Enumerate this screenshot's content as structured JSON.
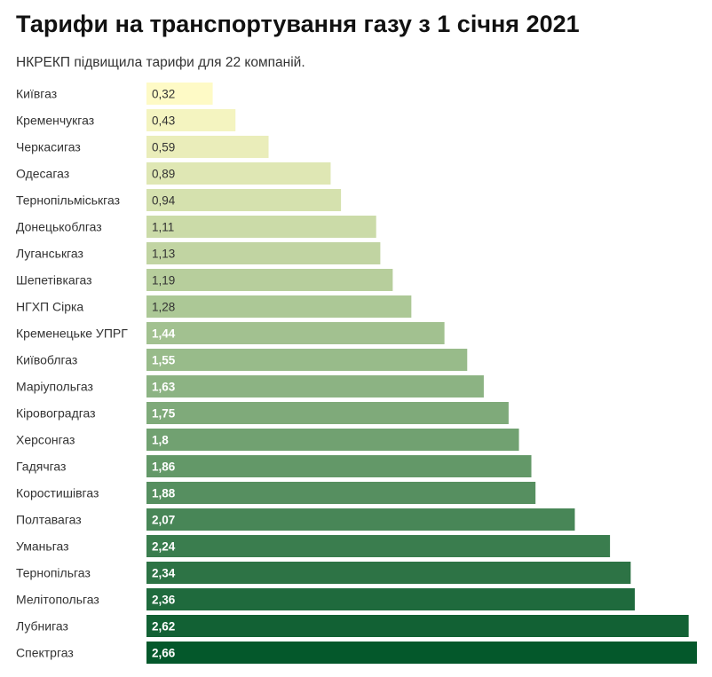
{
  "header": {
    "title": "Тарифи на транспортування газу з 1 січня 2021",
    "subtitle": "НКРЕКП підвищила тарифи для 22 компаній."
  },
  "colors": {
    "low": "#fefac6",
    "mid": "#93b887",
    "high": "#04582b"
  },
  "chart_data": {
    "type": "bar",
    "orientation": "horizontal",
    "title": "Тарифи на транспортування газу з 1 січня 2021",
    "subtitle": "НКРЕКП підвищила тарифи для 22 компаній.",
    "categories": [
      "Київгаз",
      "Кременчукгаз",
      "Черкасигаз",
      "Одесагаз",
      "Тернопільміськгаз",
      "Донецькоблгаз",
      "Луганськгаз",
      "Шепетівкагаз",
      "НГХП Сірка",
      "Кременецьке УПРГ",
      "Київоблгаз",
      "Маріупольгаз",
      "Кіровоградгаз",
      "Херсонгаз",
      "Гадячгаз",
      "Коростишівгаз",
      "Полтавагаз",
      "Уманьгаз",
      "Тернопільгаз",
      "Мелітопольгаз",
      "Лубнигаз",
      "Спектргаз"
    ],
    "values": [
      0.32,
      0.43,
      0.59,
      0.89,
      0.94,
      1.11,
      1.13,
      1.19,
      1.28,
      1.44,
      1.55,
      1.63,
      1.75,
      1.8,
      1.86,
      1.88,
      2.07,
      2.24,
      2.34,
      2.36,
      2.62,
      2.66
    ],
    "value_labels": [
      "0,32",
      "0,43",
      "0,59",
      "0,89",
      "0,94",
      "1,11",
      "1,13",
      "1,19",
      "1,28",
      "1,44",
      "1,55",
      "1,63",
      "1,75",
      "1,8",
      "1,86",
      "1,88",
      "2,07",
      "2,24",
      "2,34",
      "2,36",
      "2,62",
      "2,66"
    ],
    "xlim": [
      0,
      2.66
    ],
    "grid": false,
    "legend": "none"
  }
}
